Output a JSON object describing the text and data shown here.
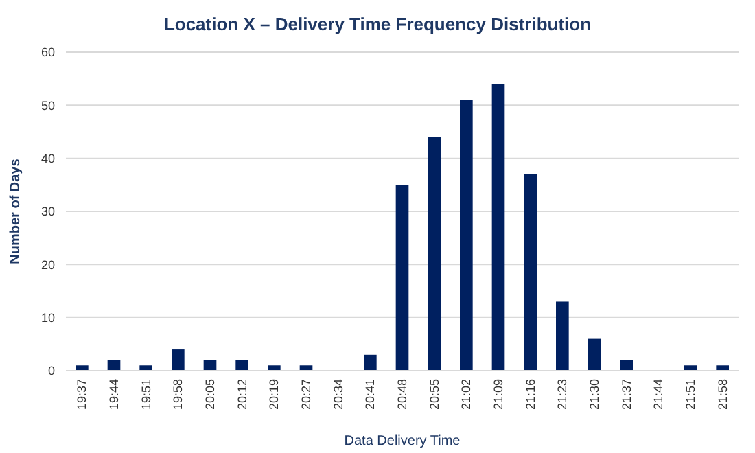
{
  "chart_data": {
    "type": "bar",
    "title": "Location X – Delivery Time Frequency Distribution",
    "xlabel": "Data Delivery Time",
    "ylabel": "Number of Days",
    "categories": [
      "19:37",
      "19:44",
      "19:51",
      "19:58",
      "20:05",
      "20:12",
      "20:19",
      "20:27",
      "20:34",
      "20:41",
      "20:48",
      "20:55",
      "21:02",
      "21:09",
      "21:16",
      "21:23",
      "21:30",
      "21:37",
      "21:44",
      "21:51",
      "21:58"
    ],
    "values": [
      1,
      2,
      1,
      4,
      2,
      2,
      1,
      1,
      0,
      3,
      35,
      44,
      51,
      54,
      37,
      13,
      6,
      2,
      0,
      1,
      1
    ],
    "color": "#002060",
    "ylim": [
      0,
      60
    ],
    "yticks": [
      0,
      10,
      20,
      30,
      40,
      50,
      60
    ],
    "grid": "y"
  }
}
